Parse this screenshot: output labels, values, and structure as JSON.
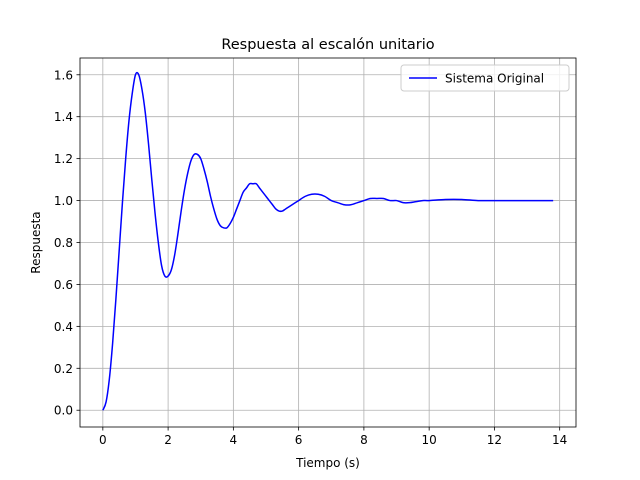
{
  "chart_data": {
    "type": "line",
    "title": "Respuesta al escalón unitario",
    "xlabel": "Tiempo (s)",
    "ylabel": "Respuesta",
    "xlim": [
      -0.7,
      14.5
    ],
    "ylim": [
      -0.08,
      1.68
    ],
    "xticks": [
      0,
      2,
      4,
      6,
      8,
      10,
      12,
      14
    ],
    "yticks": [
      0.0,
      0.2,
      0.4,
      0.6,
      0.8,
      1.0,
      1.2,
      1.4,
      1.6
    ],
    "x_tick_labels": [
      "0",
      "2",
      "4",
      "6",
      "8",
      "10",
      "12",
      "14"
    ],
    "y_tick_labels": [
      "0.0",
      "0.2",
      "0.4",
      "0.6",
      "0.8",
      "1.0",
      "1.2",
      "1.4",
      "1.6"
    ],
    "grid": true,
    "legend_position": "top-right",
    "series": [
      {
        "name": "Sistema Original",
        "color": "#0000ff",
        "x": [
          0,
          0.1,
          0.2,
          0.3,
          0.4,
          0.5,
          0.6,
          0.7,
          0.8,
          0.9,
          1.0,
          1.1,
          1.2,
          1.3,
          1.4,
          1.5,
          1.6,
          1.7,
          1.8,
          1.9,
          2.0,
          2.1,
          2.2,
          2.3,
          2.4,
          2.5,
          2.6,
          2.7,
          2.8,
          2.9,
          3.0,
          3.1,
          3.2,
          3.3,
          3.4,
          3.5,
          3.6,
          3.7,
          3.8,
          3.9,
          4.0,
          4.1,
          4.2,
          4.3,
          4.4,
          4.5,
          4.6,
          4.7,
          4.8,
          4.9,
          5.0,
          5.1,
          5.2,
          5.3,
          5.4,
          5.5,
          5.6,
          5.7,
          5.8,
          5.9,
          6.0,
          6.2,
          6.4,
          6.6,
          6.8,
          7.0,
          7.2,
          7.4,
          7.6,
          7.8,
          8.0,
          8.2,
          8.4,
          8.6,
          8.8,
          9.0,
          9.2,
          9.4,
          9.6,
          9.8,
          10.0,
          10.5,
          11.0,
          11.5,
          12.0,
          12.5,
          13.0,
          13.5,
          13.8
        ],
        "y": [
          0.0,
          0.04,
          0.15,
          0.32,
          0.53,
          0.76,
          0.99,
          1.2,
          1.38,
          1.51,
          1.6,
          1.6,
          1.53,
          1.42,
          1.27,
          1.1,
          0.94,
          0.8,
          0.69,
          0.64,
          0.64,
          0.67,
          0.74,
          0.84,
          0.95,
          1.05,
          1.13,
          1.19,
          1.22,
          1.22,
          1.2,
          1.15,
          1.09,
          1.02,
          0.96,
          0.91,
          0.88,
          0.87,
          0.87,
          0.89,
          0.92,
          0.96,
          1.0,
          1.04,
          1.06,
          1.08,
          1.08,
          1.08,
          1.06,
          1.04,
          1.02,
          1.0,
          0.98,
          0.96,
          0.95,
          0.95,
          0.96,
          0.97,
          0.98,
          0.99,
          1.0,
          1.02,
          1.03,
          1.03,
          1.02,
          1.0,
          0.99,
          0.98,
          0.98,
          0.99,
          1.0,
          1.01,
          1.01,
          1.01,
          1.0,
          1.0,
          0.99,
          0.99,
          0.995,
          1.0,
          1.0,
          1.005,
          1.005,
          1.0,
          1.0,
          1.0,
          1.0,
          1.0,
          1.0
        ]
      }
    ]
  }
}
